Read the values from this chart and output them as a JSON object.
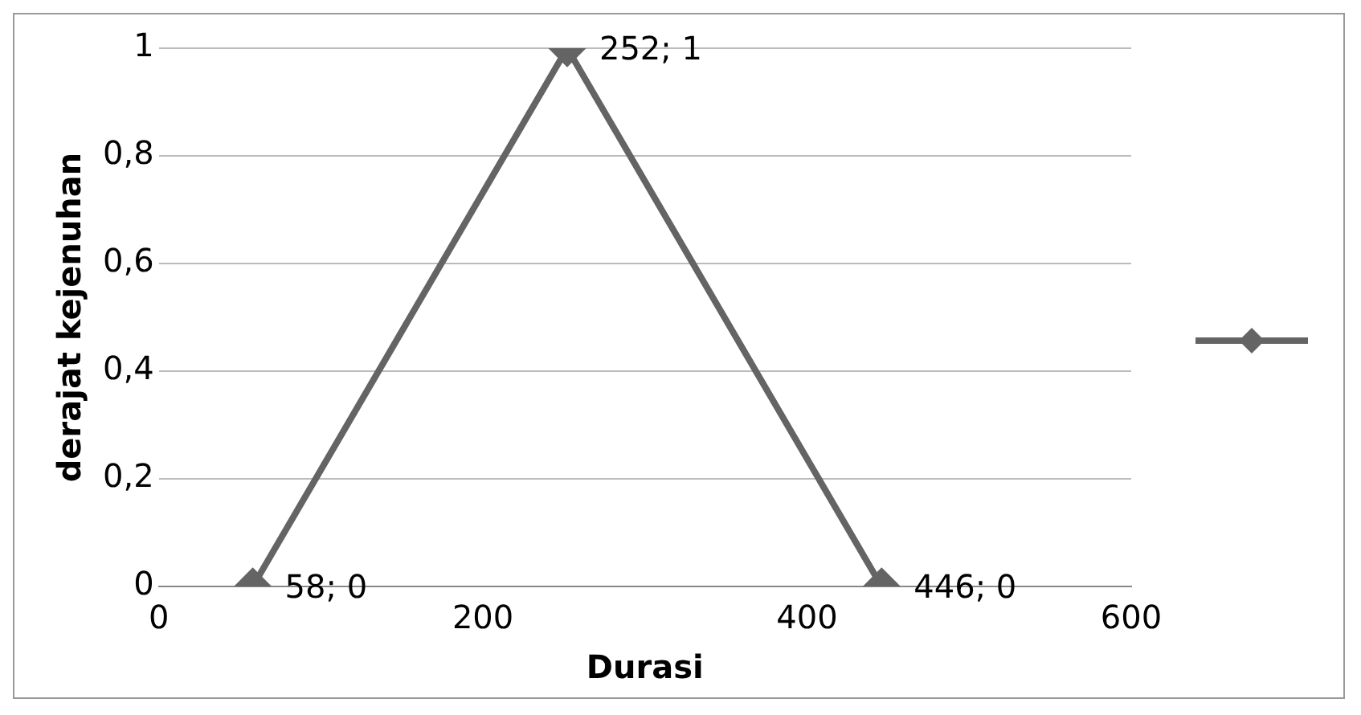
{
  "chart_data": {
    "type": "line",
    "xlabel": "Durasi",
    "ylabel": "derajat kejenuhan",
    "x": [
      58,
      252,
      446
    ],
    "series": [
      {
        "color": "#646464",
        "values": [
          0,
          1,
          0
        ],
        "value_labels": [
          "58; 0",
          "252; 1",
          "446; 0"
        ]
      }
    ],
    "xlim": [
      0,
      600
    ],
    "xticks": [
      0,
      200,
      400,
      600
    ],
    "ylim": [
      0,
      1
    ],
    "yticks": [
      {
        "value": 0,
        "label": "0"
      },
      {
        "value": 0.2,
        "label": "0,2"
      },
      {
        "value": 0.4,
        "label": "0,4"
      },
      {
        "value": 0.6,
        "label": "0,6"
      },
      {
        "value": 0.8,
        "label": "0,8"
      },
      {
        "value": 1,
        "label": "1"
      }
    ],
    "grid": "y",
    "marker": "diamond",
    "line_style": "solid"
  }
}
